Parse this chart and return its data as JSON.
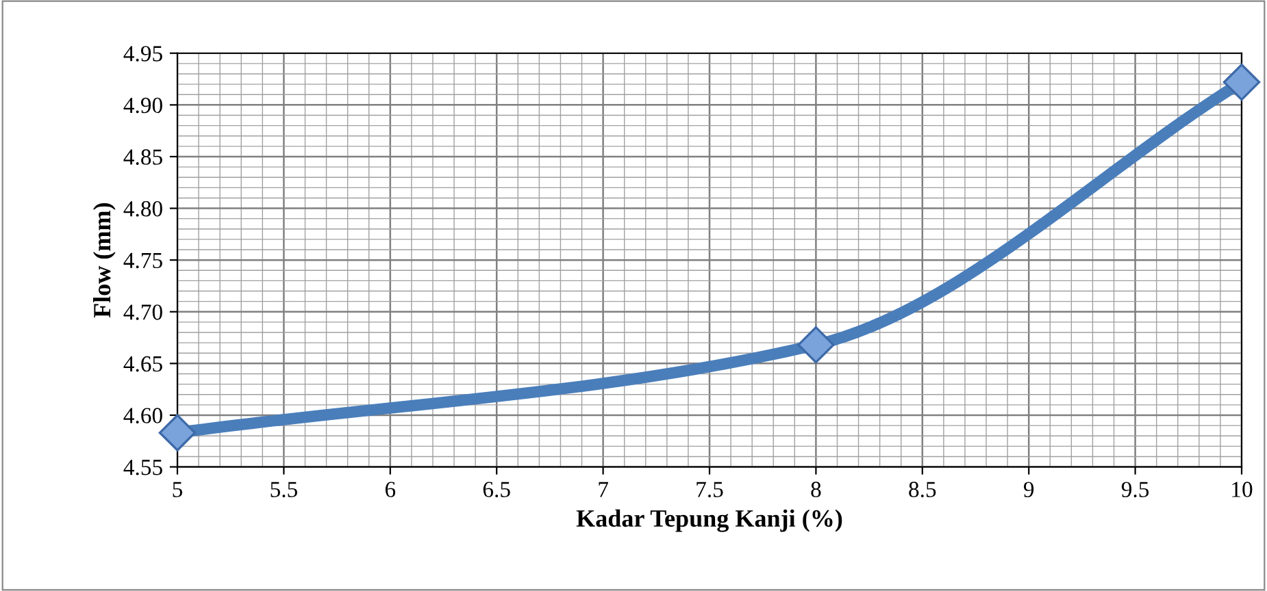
{
  "chart_data": {
    "type": "line",
    "xlabel": "Kadar Tepung Kanji (%)",
    "ylabel": "Flow (mm)",
    "series": [
      {
        "color": "#4a7ebb",
        "x": [
          5,
          8,
          10
        ],
        "values": [
          4.583,
          4.668,
          4.922
        ]
      }
    ],
    "xlim": [
      5,
      10
    ],
    "xticks": [
      5,
      5.5,
      6,
      6.5,
      7,
      7.5,
      8,
      8.5,
      9,
      9.5,
      10
    ],
    "ylim": [
      4.55,
      4.95
    ],
    "yticks": [
      {
        "value": 4.55,
        "label": "4.55"
      },
      {
        "value": 4.6,
        "label": "4.60"
      },
      {
        "value": 4.65,
        "label": "4.65"
      },
      {
        "value": 4.7,
        "label": "4.70"
      },
      {
        "value": 4.75,
        "label": "4.75"
      },
      {
        "value": 4.8,
        "label": "4.80"
      },
      {
        "value": 4.85,
        "label": "4.85"
      },
      {
        "value": 4.9,
        "label": "4.90"
      },
      {
        "value": 4.95,
        "label": "4.95"
      }
    ],
    "grid": true,
    "marker": "diamond",
    "line_style": "solid"
  }
}
